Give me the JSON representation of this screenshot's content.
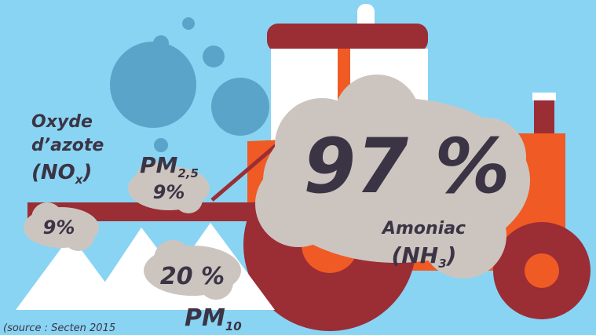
{
  "labels": {
    "no": {
      "line1": "Oxyde",
      "line2": "d’azote",
      "formula_open": "(NO",
      "formula_sub": "x",
      "formula_close": ")",
      "value": "9%"
    },
    "pm25": {
      "name": "PM",
      "sub": "2,5",
      "value": "9%"
    },
    "pm10": {
      "name": "PM",
      "sub": "10",
      "value": "20 %"
    },
    "nh3": {
      "value": "97 %",
      "line1": "Amoniac",
      "formula_open": "(NH",
      "formula_sub": "3",
      "formula_close": ")"
    },
    "source": "(source : Secten 2015"
  }
}
